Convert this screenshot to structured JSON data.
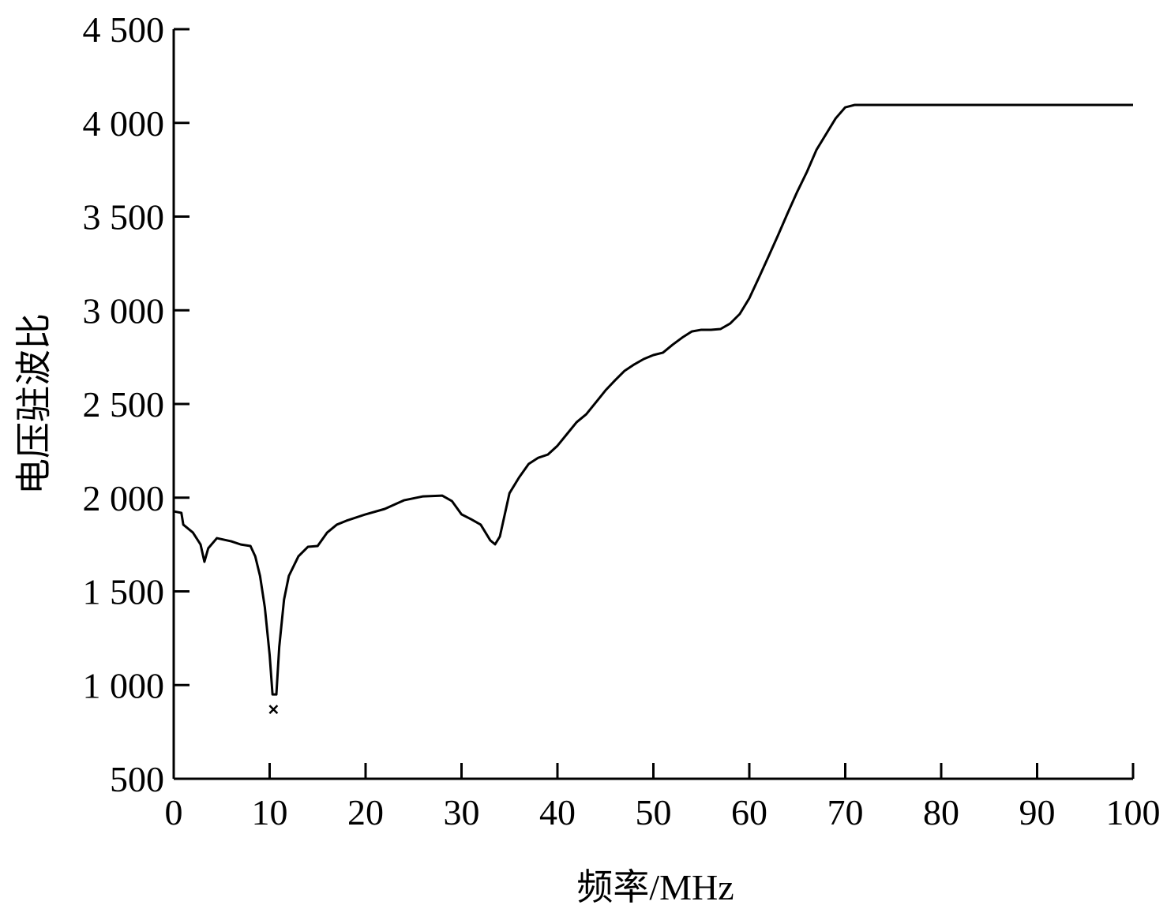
{
  "chart_data": {
    "type": "line",
    "x_label": "频率/MHz",
    "y_label": "电压驻波比",
    "x": [
      0,
      0.8,
      1,
      2,
      2.8,
      3.2,
      3.6,
      4.5,
      6,
      7,
      8,
      8.5,
      9,
      9.5,
      10,
      10.3,
      10.7,
      11,
      11.5,
      12,
      13,
      14,
      15,
      16,
      17,
      18,
      20,
      22,
      24,
      26,
      28,
      29,
      30,
      31,
      32,
      33,
      33.5,
      34,
      35,
      36,
      37,
      38,
      39,
      40,
      41,
      42,
      43,
      44,
      45,
      46,
      47,
      48,
      49,
      50,
      51,
      52,
      53,
      54,
      55,
      56,
      57,
      58,
      59,
      60,
      61,
      62,
      63,
      64,
      65,
      66,
      67,
      68,
      69,
      70,
      71,
      100
    ],
    "series": [
      {
        "color": "#000000",
        "values": [
          1927,
          1919,
          1856,
          1814,
          1750,
          1658,
          1730,
          1784,
          1767,
          1750,
          1742,
          1687,
          1582,
          1414,
          1161,
          950,
          950,
          1203,
          1456,
          1582,
          1687,
          1738,
          1742,
          1814,
          1856,
          1877,
          1911,
          1940,
          1986,
          2007,
          2011,
          1982,
          1911,
          1885,
          1856,
          1772,
          1751,
          1793,
          2024,
          2108,
          2180,
          2213,
          2230,
          2277,
          2340,
          2403,
          2445,
          2508,
          2572,
          2626,
          2677,
          2711,
          2740,
          2761,
          2774,
          2816,
          2854,
          2887,
          2896,
          2896,
          2900,
          2929,
          2980,
          3064,
          3174,
          3287,
          3401,
          3519,
          3633,
          3738,
          3856,
          3940,
          4024,
          4083,
          4096,
          4096
        ]
      }
    ],
    "markers": {
      "x": [
        10.4
      ],
      "values": [
        870
      ]
    },
    "xlim": [
      0,
      100
    ],
    "xticks": [
      0,
      10,
      20,
      30,
      40,
      50,
      60,
      70,
      80,
      90,
      100
    ],
    "ylim": [
      500,
      4500
    ],
    "yticks": [
      500,
      {
        "value": 1000,
        "label": "1 000"
      },
      {
        "value": 1500,
        "label": "1 500"
      },
      {
        "value": 2000,
        "label": "2 000"
      },
      {
        "value": 2500,
        "label": "2 500"
      },
      {
        "value": 3000,
        "label": "3 000"
      },
      {
        "value": 3500,
        "label": "3 500"
      },
      {
        "value": 4000,
        "label": "4 000"
      },
      {
        "value": 4500,
        "label": "4 500"
      }
    ],
    "grid": false
  }
}
